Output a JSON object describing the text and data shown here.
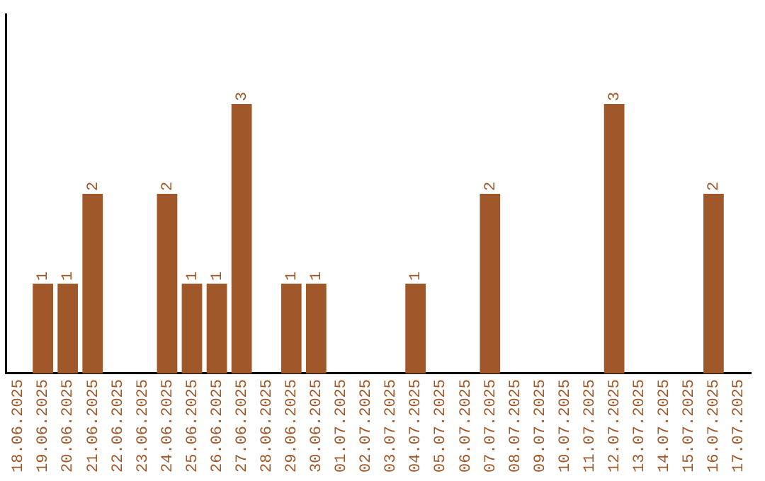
{
  "chart_data": {
    "type": "bar",
    "categories": [
      "18.06.2025",
      "19.06.2025",
      "20.06.2025",
      "21.06.2025",
      "22.06.2025",
      "23.06.2025",
      "24.06.2025",
      "25.06.2025",
      "26.06.2025",
      "27.06.2025",
      "28.06.2025",
      "29.06.2025",
      "30.06.2025",
      "01.07.2025",
      "02.07.2025",
      "03.07.2025",
      "04.07.2025",
      "05.07.2025",
      "06.07.2025",
      "07.07.2025",
      "08.07.2025",
      "09.07.2025",
      "10.07.2025",
      "11.07.2025",
      "12.07.2025",
      "13.07.2025",
      "14.07.2025",
      "15.07.2025",
      "16.07.2025",
      "17.07.2025"
    ],
    "values": [
      0,
      1,
      1,
      2,
      0,
      0,
      2,
      1,
      1,
      3,
      0,
      1,
      1,
      0,
      0,
      0,
      1,
      0,
      0,
      2,
      0,
      0,
      0,
      0,
      3,
      0,
      0,
      0,
      2,
      0
    ],
    "value_labels": [
      null,
      "1",
      "1",
      "2",
      null,
      null,
      "2",
      "1",
      "1",
      "3",
      null,
      "1",
      "1",
      null,
      null,
      null,
      "1",
      null,
      null,
      "2",
      null,
      null,
      null,
      null,
      "3",
      null,
      null,
      null,
      "2",
      null
    ],
    "color": "#a0582a",
    "tick_labels": "x",
    "grid": false,
    "legend": false
  }
}
